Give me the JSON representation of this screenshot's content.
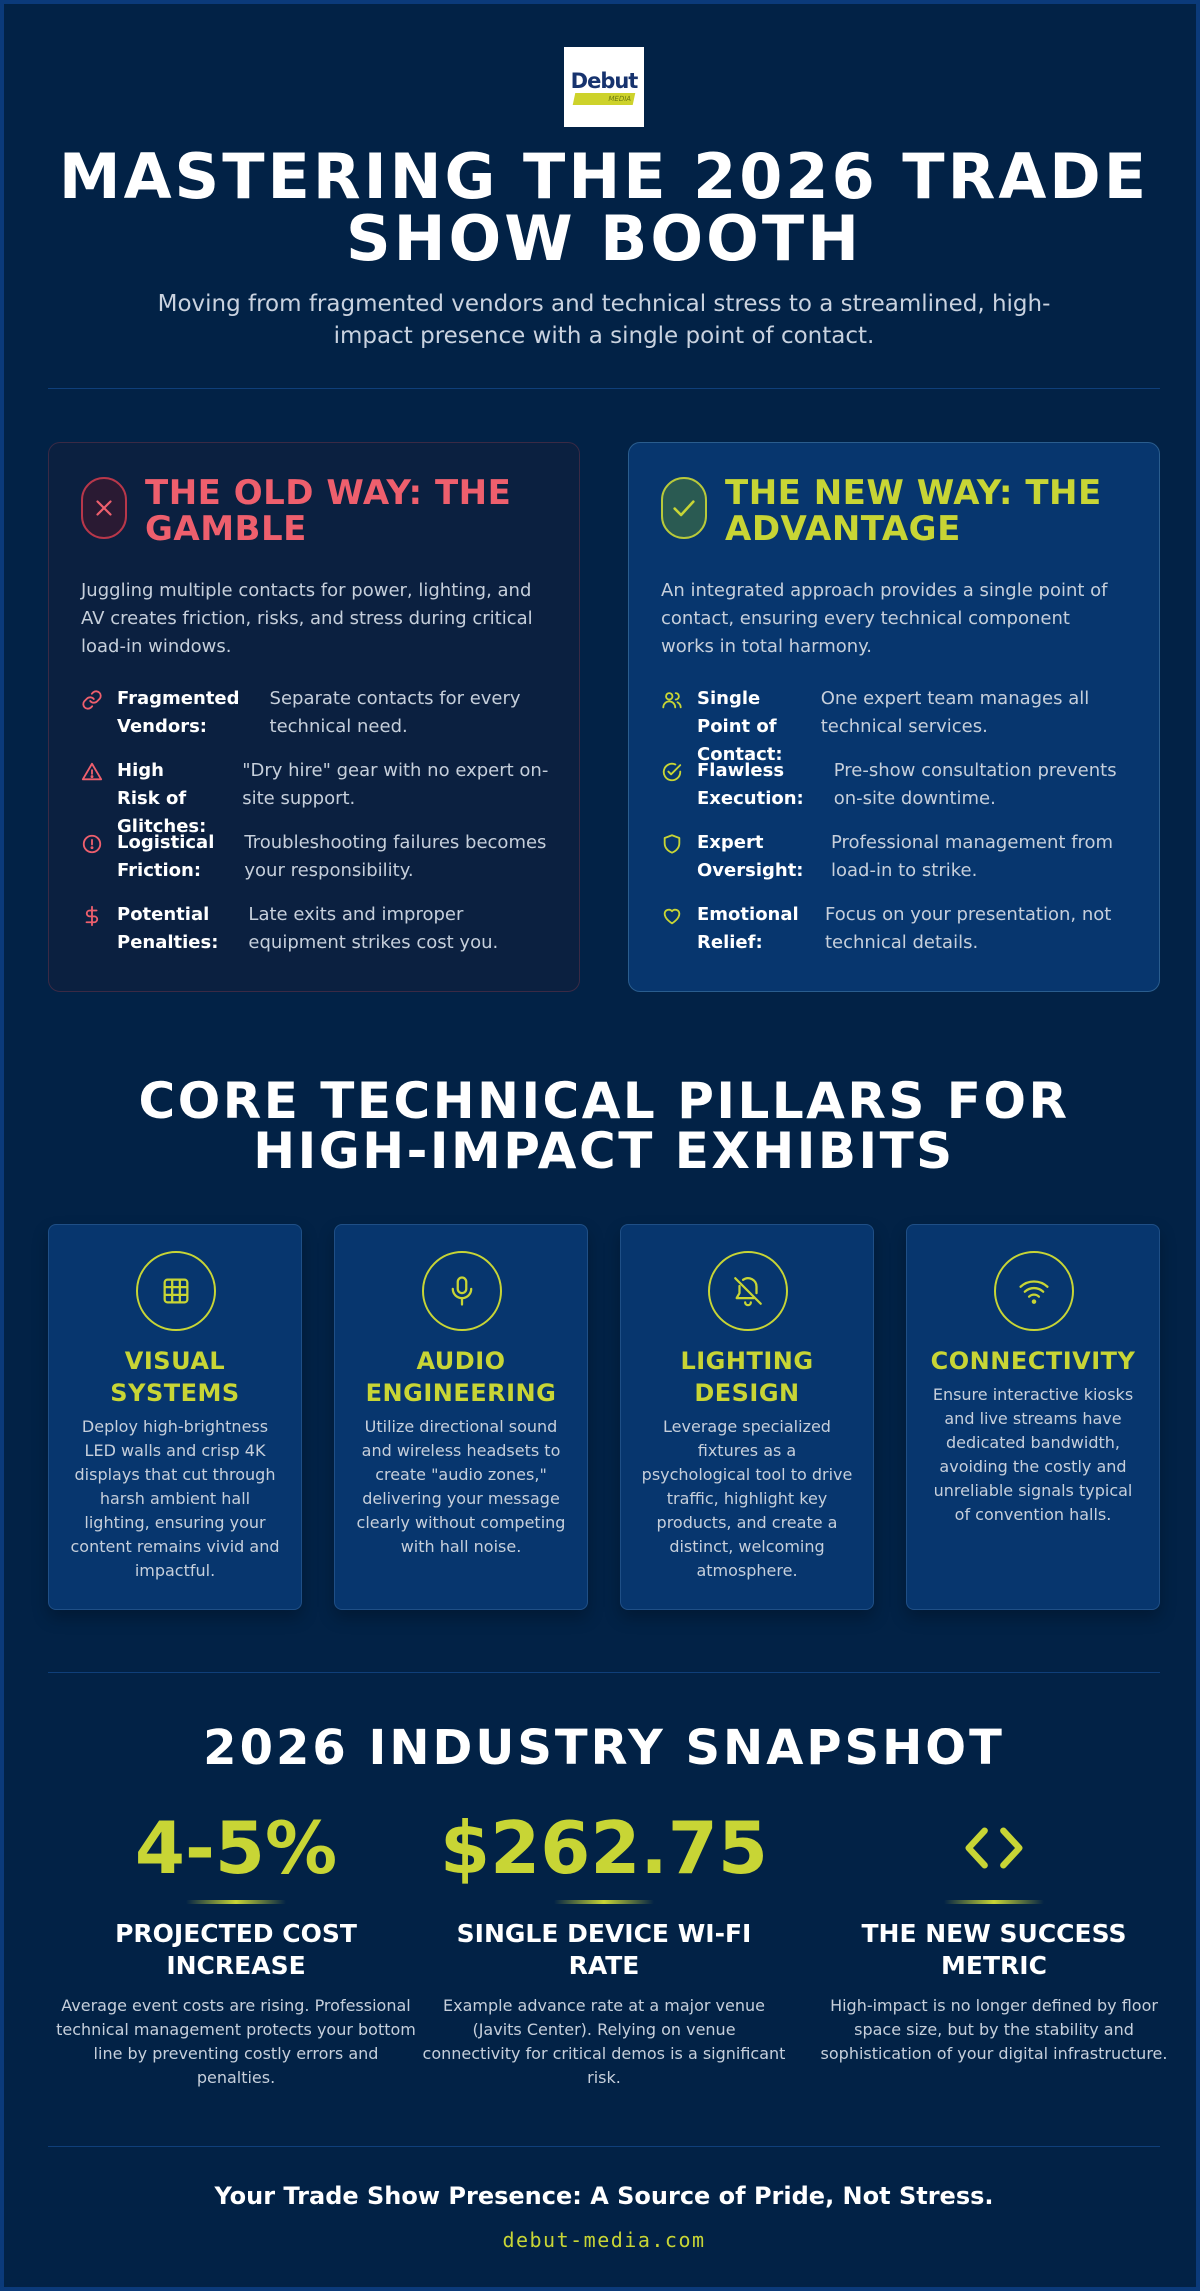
{
  "brand": {
    "logo_text": "Debut",
    "logo_subtext": "MEDIA"
  },
  "hero": {
    "title": "MASTERING THE 2026 TRADE SHOW BOOTH",
    "subtitle": "Moving from fragmented vendors and technical stress to a streamlined, high-impact presence with a single point of contact."
  },
  "colors": {
    "background": "#022246",
    "accent": "#c8d535",
    "warning": "#ee5f6d",
    "card_new": "#07366e",
    "card_old": "#0b2040"
  },
  "old_way": {
    "icon": "x-icon",
    "title": "THE OLD WAY: THE GAMBLE",
    "intro": "Juggling multiple contacts for power, lighting, and AV creates friction, risks, and stress during critical load-in windows.",
    "items": [
      {
        "icon": "link-icon",
        "key": "Fragmented Vendors:",
        "value": "Separate contacts for every technical need."
      },
      {
        "icon": "warning-triangle-icon",
        "key": "High Risk of Glitches:",
        "value": "\"Dry hire\" gear with no expert on-site support."
      },
      {
        "icon": "alert-circle-icon",
        "key": "Logistical Friction:",
        "value": "Troubleshooting failures becomes your responsibility."
      },
      {
        "icon": "dollar-icon",
        "key": "Potential Penalties:",
        "value": "Late exits and improper equipment strikes cost you."
      }
    ]
  },
  "new_way": {
    "icon": "check-icon",
    "title": "THE NEW WAY: THE ADVANTAGE",
    "intro": "An integrated approach provides a single point of contact, ensuring every technical component works in total harmony.",
    "items": [
      {
        "icon": "users-icon",
        "key": "Single Point of Contact:",
        "value": "One expert team manages all technical services."
      },
      {
        "icon": "check-circle-icon",
        "key": "Flawless Execution:",
        "value": "Pre-show consultation prevents on-site downtime."
      },
      {
        "icon": "shield-icon",
        "key": "Expert Oversight:",
        "value": "Professional management from load-in to strike."
      },
      {
        "icon": "heart-icon",
        "key": "Emotional Relief:",
        "value": "Focus on your presentation, not technical details."
      }
    ]
  },
  "pillars": {
    "title": "CORE TECHNICAL PILLARS FOR HIGH-IMPACT EXHIBITS",
    "items": [
      {
        "icon": "grid-icon",
        "title": "VISUAL SYSTEMS",
        "body": "Deploy high-brightness LED walls and crisp 4K displays that cut through harsh ambient hall lighting, ensuring your content remains vivid and impactful."
      },
      {
        "icon": "microphone-icon",
        "title": "AUDIO ENGINEERING",
        "body": "Utilize directional sound and wireless headsets to create \"audio zones,\" delivering your message clearly without competing with hall noise."
      },
      {
        "icon": "lamp-icon",
        "title": "LIGHTING DESIGN",
        "body": "Leverage specialized fixtures as a psychological tool to drive traffic, highlight key products, and create a distinct, welcoming atmosphere."
      },
      {
        "icon": "wifi-icon",
        "title": "CONNECTIVITY",
        "body": "Ensure interactive kiosks and live streams have dedicated bandwidth, avoiding the costly and unreliable signals typical of convention halls."
      }
    ]
  },
  "snapshot": {
    "title": "2026 INDUSTRY SNAPSHOT",
    "stats": [
      {
        "value": "4-5%",
        "label": "PROJECTED COST INCREASE",
        "body": "Average event costs are rising. Professional technical management protects your bottom line by preventing costly errors and penalties."
      },
      {
        "value": "$262.75",
        "label": "SINGLE DEVICE WI-FI RATE",
        "body": "Example advance rate at a major venue (Javits Center). Relying on venue connectivity for critical demos is a significant risk."
      },
      {
        "icon": "code-icon",
        "label": "THE NEW SUCCESS METRIC",
        "body": "High-impact is no longer defined by floor space size, but by the stability and sophistication of your digital infrastructure."
      }
    ]
  },
  "footer": {
    "tagline": "Your Trade Show Presence: A Source of Pride, Not Stress.",
    "url": "debut-media.com"
  }
}
